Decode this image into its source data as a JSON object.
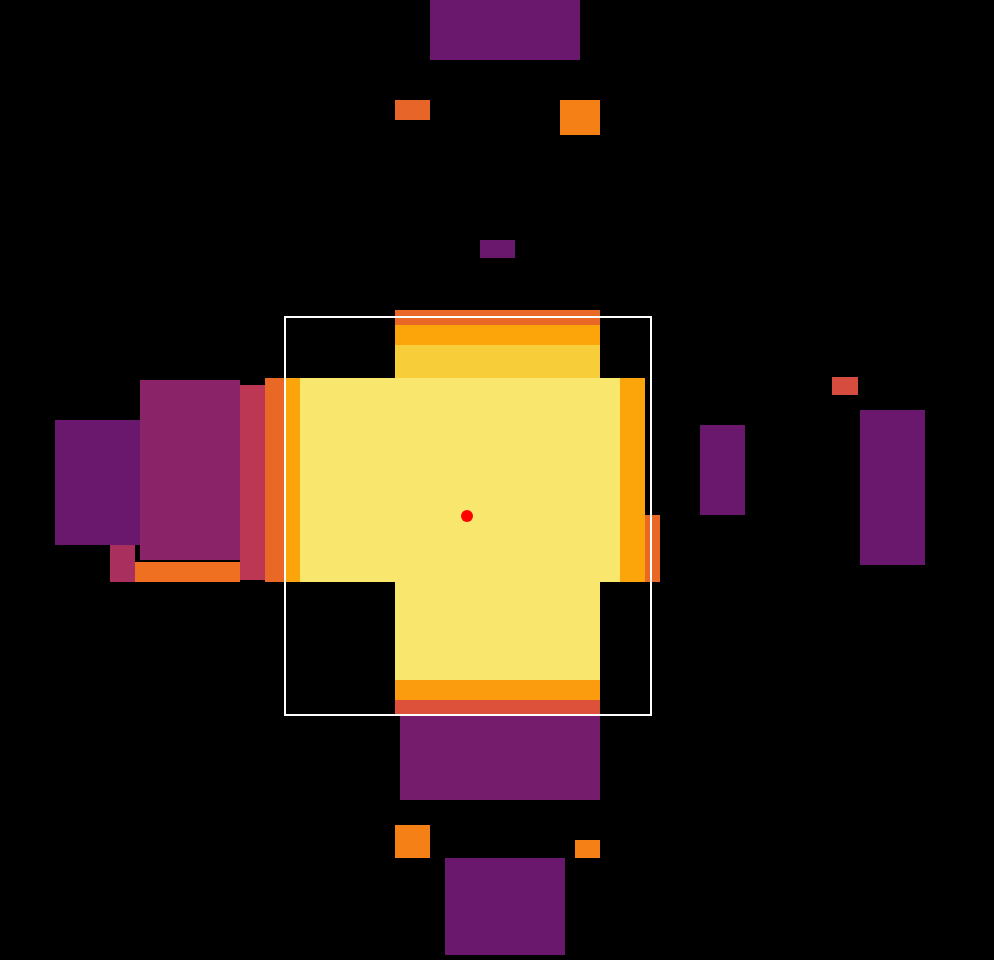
{
  "chart_data": {
    "type": "heatmap",
    "tick_labels": false,
    "grid": false,
    "xlim": [
      0,
      994
    ],
    "ylim": [
      960,
      0
    ],
    "zlim": [
      0,
      1
    ],
    "cells": [
      {
        "x": [
          430,
          580
        ],
        "y": [
          0,
          60
        ],
        "z": 0.3
      },
      {
        "x": [
          395,
          430
        ],
        "y": [
          100,
          120
        ],
        "z": 0.65
      },
      {
        "x": [
          560,
          600
        ],
        "y": [
          100,
          135
        ],
        "z": 0.72
      },
      {
        "x": [
          480,
          515
        ],
        "y": [
          240,
          258
        ],
        "z": 0.3
      },
      {
        "x": [
          395,
          600
        ],
        "y": [
          310,
          325
        ],
        "z": 0.66
      },
      {
        "x": [
          395,
          600
        ],
        "y": [
          325,
          345
        ],
        "z": 0.8
      },
      {
        "x": [
          395,
          600
        ],
        "y": [
          345,
          378
        ],
        "z": 0.88
      },
      {
        "x": [
          265,
          285
        ],
        "y": [
          378,
          582
        ],
        "z": 0.66
      },
      {
        "x": [
          285,
          300
        ],
        "y": [
          378,
          582
        ],
        "z": 0.8
      },
      {
        "x": [
          300,
          620
        ],
        "y": [
          378,
          582
        ],
        "z": 0.94
      },
      {
        "x": [
          620,
          645
        ],
        "y": [
          378,
          582
        ],
        "z": 0.8
      },
      {
        "x": [
          645,
          660
        ],
        "y": [
          515,
          582
        ],
        "z": 0.66
      },
      {
        "x": [
          395,
          600
        ],
        "y": [
          582,
          680
        ],
        "z": 0.94
      },
      {
        "x": [
          395,
          600
        ],
        "y": [
          680,
          700
        ],
        "z": 0.78
      },
      {
        "x": [
          395,
          600
        ],
        "y": [
          700,
          715
        ],
        "z": 0.6
      },
      {
        "x": [
          400,
          600
        ],
        "y": [
          715,
          800
        ],
        "z": 0.33
      },
      {
        "x": [
          55,
          140
        ],
        "y": [
          420,
          545
        ],
        "z": 0.3
      },
      {
        "x": [
          140,
          240
        ],
        "y": [
          380,
          560
        ],
        "z": 0.38
      },
      {
        "x": [
          240,
          265
        ],
        "y": [
          385,
          580
        ],
        "z": 0.5
      },
      {
        "x": [
          110,
          135
        ],
        "y": [
          545,
          582
        ],
        "z": 0.45
      },
      {
        "x": [
          135,
          240
        ],
        "y": [
          562,
          582
        ],
        "z": 0.68
      },
      {
        "x": [
          700,
          745
        ],
        "y": [
          425,
          515
        ],
        "z": 0.3
      },
      {
        "x": [
          832,
          858
        ],
        "y": [
          377,
          395
        ],
        "z": 0.58
      },
      {
        "x": [
          860,
          925
        ],
        "y": [
          410,
          565
        ],
        "z": 0.3
      },
      {
        "x": [
          395,
          430
        ],
        "y": [
          825,
          858
        ],
        "z": 0.72
      },
      {
        "x": [
          575,
          600
        ],
        "y": [
          840,
          858
        ],
        "z": 0.72
      },
      {
        "x": [
          445,
          565
        ],
        "y": [
          858,
          955
        ],
        "z": 0.3
      }
    ],
    "box": {
      "x": [
        285,
        651
      ],
      "y": [
        317,
        715
      ],
      "color": "#ffffff"
    },
    "point": {
      "x": 467,
      "y": 516,
      "color": "#ff0000"
    }
  }
}
